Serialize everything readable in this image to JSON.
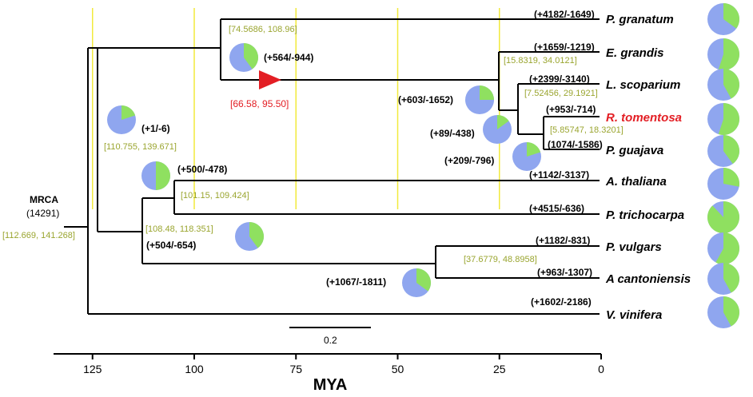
{
  "colors": {
    "branch": "#000000",
    "guide": "#f2ea3c",
    "interval": "#9aa52f",
    "highlight": "#e31e24",
    "gain": "#8fe060",
    "loss": "#8fa6ef"
  },
  "root": {
    "label": "MRCA",
    "count": "(14291)",
    "interval": "[112.669, 141.268]"
  },
  "species": [
    {
      "name": "P. granatum",
      "counts": "(+4182/-1649)",
      "highlight": false,
      "gain_fraction": 0.35
    },
    {
      "name": "E. grandis",
      "counts": "(+1659/-1219)",
      "highlight": false,
      "gain_fraction": 0.55
    },
    {
      "name": "L. scoparium",
      "counts": "(+2399/-3140)",
      "highlight": false,
      "gain_fraction": 0.42
    },
    {
      "name": "R. tomentosa",
      "counts": "(+953/-714)",
      "highlight": true,
      "gain_fraction": 0.55
    },
    {
      "name": "P. guajava",
      "counts": "(1074/-1586)",
      "highlight": false,
      "gain_fraction": 0.4
    },
    {
      "name": "A. thaliana",
      "counts": "(+1142/-3137)",
      "highlight": false,
      "gain_fraction": 0.28
    },
    {
      "name": "P. trichocarpa",
      "counts": "(+4515/-636)",
      "highlight": false,
      "gain_fraction": 0.88
    },
    {
      "name": "P. vulgars",
      "counts": "(+1182/-831)",
      "highlight": false,
      "gain_fraction": 0.58
    },
    {
      "name": "A cantoniensis",
      "counts": "(+963/-1307)",
      "highlight": false,
      "gain_fraction": 0.42
    },
    {
      "name": "V. vinifera",
      "counts": "(+1602/-2186)",
      "highlight": false,
      "gain_fraction": 0.42
    }
  ],
  "nodes": [
    {
      "id": "myrtales",
      "counts": "(+564/-944)",
      "interval": "[74.5686, 108.96]",
      "gain_fraction": 0.4
    },
    {
      "id": "rosids",
      "counts": "(+1/-6)",
      "interval": "[110.755, 139.671]",
      "gain_fraction": 0.2
    },
    {
      "id": "malvids",
      "counts": "(+500/-478)",
      "interval": "[101.15, 109.424]",
      "gain_fraction": 0.5
    },
    {
      "id": "fabids",
      "counts": "(+504/-654)",
      "interval": "[108.48, 118.351]",
      "gain_fraction": 0.4
    },
    {
      "id": "myrtaceae",
      "counts": "(+603/-1652)",
      "interval": "[15.8319, 34.0121]",
      "gain_fraction": 0.25
    },
    {
      "id": "myrteae-lepto",
      "counts": "",
      "interval": "[7.52456, 29.1921]",
      "gain_fraction": 0
    },
    {
      "id": "myrteae",
      "counts": "(+89/-438)",
      "interval": "[5.85747, 18.3201]",
      "gain_fraction": 0.15
    },
    {
      "id": "rhod-psid",
      "counts": "(+209/-796)",
      "interval": "",
      "gain_fraction": 0.2
    },
    {
      "id": "legume-rosales",
      "counts": "(+1067/-1811)",
      "interval": "[37.6779, 48.8958]",
      "gain_fraction": 0.35
    }
  ],
  "wgd_marker": {
    "interval": "[66.58, 95.50]"
  },
  "scale_bar": {
    "label": "0.2"
  },
  "axis": {
    "title": "MYA",
    "ticks": [
      125,
      100,
      75,
      50,
      25,
      0
    ],
    "tick_labels": [
      "125",
      "100",
      "75",
      "50",
      "25",
      "0"
    ],
    "range": [
      135,
      0
    ]
  }
}
